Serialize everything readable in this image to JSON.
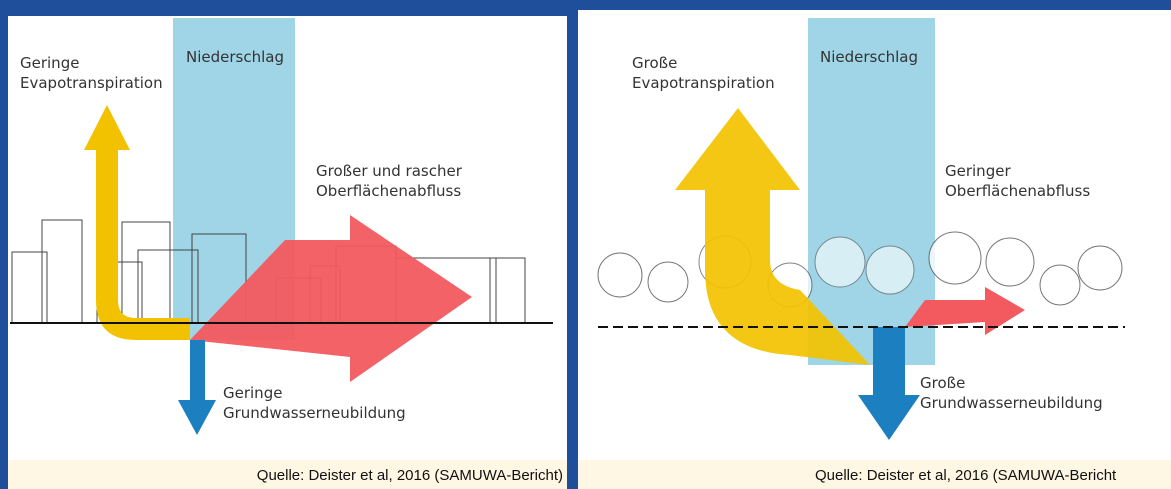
{
  "left_panel": {
    "precipitation": "Niederschlag",
    "evapotranspiration": [
      "Geringe",
      "Evapotranspiration"
    ],
    "runoff": [
      "Großer und rascher",
      "Oberflächenabfluss"
    ],
    "groundwater": [
      "Geringe",
      "Grundwasserneubildung"
    ],
    "source": "Quelle: Deister et al, 2016 (SAMUWA-Bericht)"
  },
  "right_panel": {
    "precipitation": "Niederschlag",
    "evapotranspiration": [
      "Große",
      "Evapotranspiration"
    ],
    "runoff": [
      "Geringer",
      "Oberflächenabfluss"
    ],
    "groundwater": [
      "Große",
      "Grundwasserneubildung"
    ],
    "source": "Quelle: Deister et al, 2016 (SAMUWA-Bericht"
  }
}
